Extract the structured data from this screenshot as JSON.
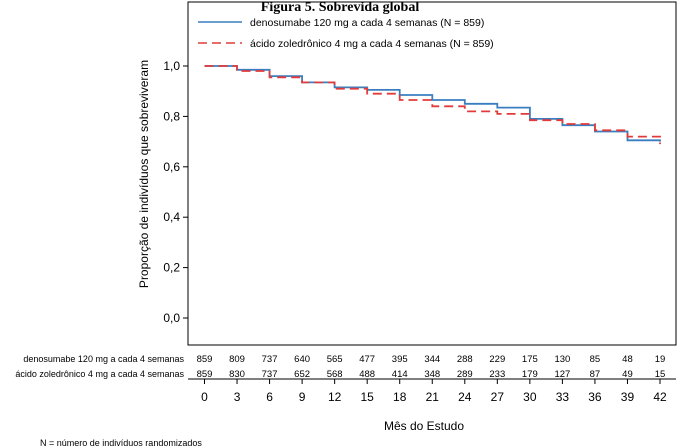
{
  "chart_data": {
    "type": "line",
    "title": "Figura 5. Sobrevida global",
    "xlabel": "Mês do Estudo",
    "ylabel": "Proporção de indivíduos que sobreviveram",
    "xlim": [
      0,
      42
    ],
    "ylim": [
      0.0,
      1.0
    ],
    "xticks": [
      "0",
      "3",
      "6",
      "9",
      "12",
      "15",
      "18",
      "21",
      "24",
      "27",
      "30",
      "33",
      "36",
      "39",
      "42"
    ],
    "yticks": [
      "0,0",
      "0,2",
      "0,4",
      "0,6",
      "0,8",
      "1,0"
    ],
    "grid": false,
    "legend_position": "top",
    "series": [
      {
        "name": "denosumabe 120 mg a cada 4 semanas (N = 859)",
        "color": "#3a7ec0",
        "style": "solid",
        "x": [
          0,
          3,
          6,
          9,
          12,
          15,
          18,
          21,
          24,
          27,
          30,
          33,
          36,
          39,
          42
        ],
        "y": [
          1.0,
          0.985,
          0.96,
          0.935,
          0.915,
          0.905,
          0.885,
          0.865,
          0.85,
          0.835,
          0.79,
          0.765,
          0.74,
          0.705,
          0.7
        ]
      },
      {
        "name": "ácido zoledrônico 4 mg a cada 4 semanas (N = 859)",
        "color": "#e23b3b",
        "style": "dashed",
        "x": [
          0,
          3,
          6,
          9,
          12,
          15,
          18,
          21,
          24,
          27,
          30,
          33,
          36,
          39,
          42
        ],
        "y": [
          1.0,
          0.98,
          0.955,
          0.935,
          0.91,
          0.89,
          0.865,
          0.84,
          0.82,
          0.81,
          0.785,
          0.77,
          0.745,
          0.72,
          0.69
        ]
      }
    ],
    "risk_table": {
      "rows": [
        {
          "label": "denosumabe 120 mg a cada 4 semanas",
          "values": [
            "859",
            "809",
            "737",
            "640",
            "565",
            "477",
            "395",
            "344",
            "288",
            "229",
            "175",
            "130",
            "85",
            "48",
            "19"
          ]
        },
        {
          "label": "ácido zoledrônico 4 mg a cada 4 semanas",
          "values": [
            "859",
            "830",
            "737",
            "652",
            "568",
            "488",
            "414",
            "348",
            "289",
            "233",
            "179",
            "127",
            "87",
            "49",
            "15"
          ]
        }
      ]
    },
    "footnote": "N = número de indivíduos randomizados"
  }
}
